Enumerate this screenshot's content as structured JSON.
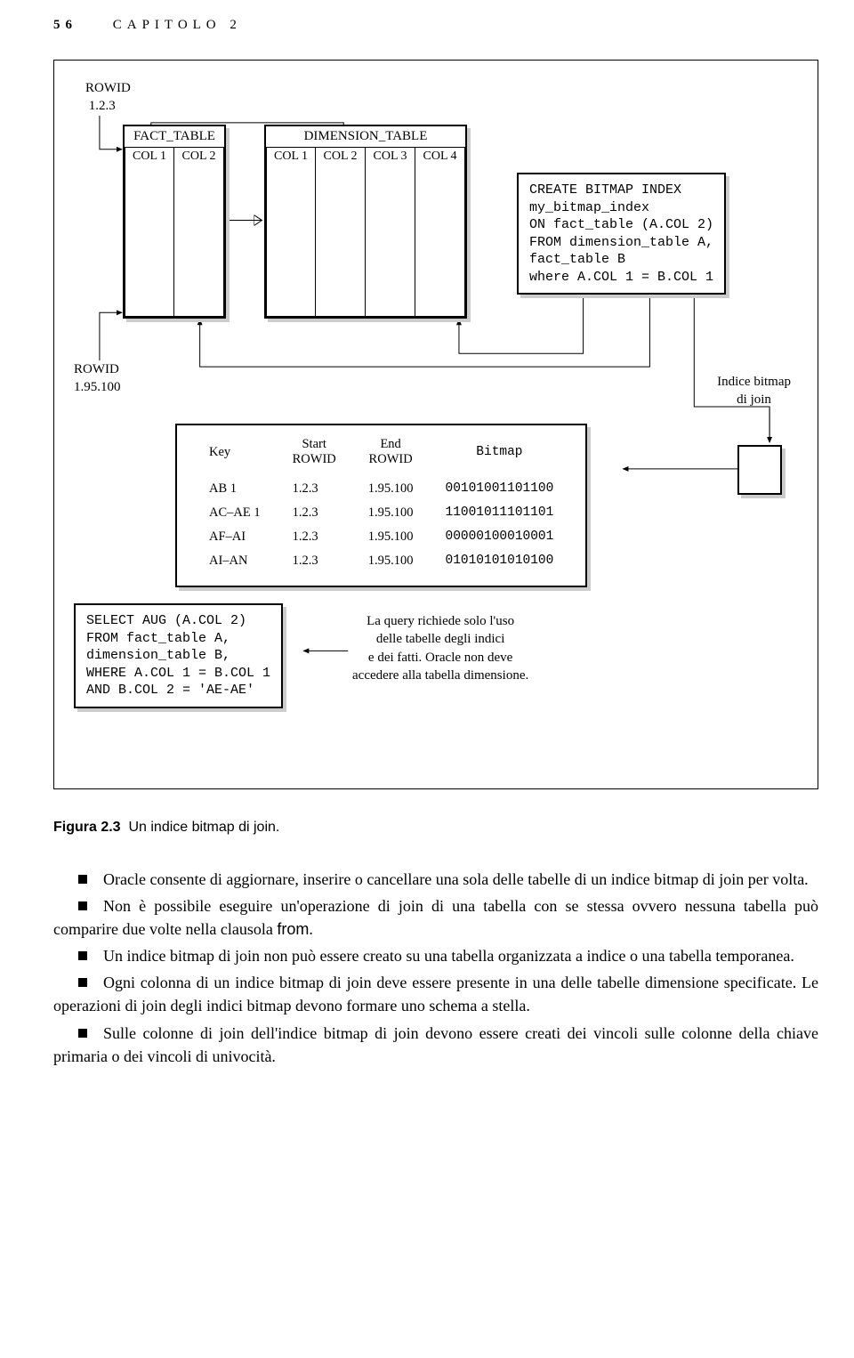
{
  "header": {
    "page_number": "56",
    "chapter": "CAPITOLO 2"
  },
  "diagram": {
    "rowid1": {
      "label": "ROWID",
      "value": "1.2.3"
    },
    "rowid2": {
      "label": "ROWID",
      "value": "1.95.100"
    },
    "indice_label_1": "Indice bitmap",
    "indice_label_2": "di join",
    "fact_table": {
      "title": "FACT_TABLE",
      "cols": [
        "COL 1",
        "COL 2"
      ]
    },
    "dim_table": {
      "title": "DIMENSION_TABLE",
      "cols": [
        "COL 1",
        "COL 2",
        "COL 3",
        "COL 4"
      ]
    },
    "create_sql": "CREATE BITMAP INDEX\nmy_bitmap_index\nON fact_table (A.COL 2)\nFROM dimension_table A,\nfact_table B\nwhere A.COL 1 = B.COL 1",
    "select_sql": "SELECT AUG (A.COL 2)\nFROM fact_table A,\ndimension_table B,\nWHERE A.COL 1 = B.COL 1\nAND B.COL 2 = 'AE-AE'",
    "bitmap_table": {
      "headers": {
        "key": "Key",
        "start": "Start\nROWID",
        "end": "End\nROWID",
        "bitmap": "Bitmap"
      },
      "rows": [
        {
          "key": "AB 1",
          "start": "1.2.3",
          "end": "1.95.100",
          "bitmap": "00101001101100"
        },
        {
          "key": "AC–AE 1",
          "start": "1.2.3",
          "end": "1.95.100",
          "bitmap": "11001011101101"
        },
        {
          "key": "AF–AI",
          "start": "1.2.3",
          "end": "1.95.100",
          "bitmap": "00000100010001"
        },
        {
          "key": "AI–AN",
          "start": "1.2.3",
          "end": "1.95.100",
          "bitmap": "01010101010100"
        }
      ]
    },
    "annotation": {
      "l1": "La query richiede solo l'uso",
      "l2": "delle tabelle degli indici",
      "l3": "e dei fatti. Oracle non deve",
      "l4": "accedere alla tabella dimensione."
    }
  },
  "figure_caption": {
    "bold": "Figura 2.3",
    "text": "Un indice bitmap di join."
  },
  "bullets": [
    "Oracle consente di aggiornare, inserire o cancellare una sola delle tabelle di un indice bitmap di join per volta.",
    "Non è possibile eseguire un'operazione di join di una tabella con se stessa ovvero nessuna tabella può comparire due volte nella clausola from.",
    "Un indice bitmap di join non può essere creato su una tabella organizzata a indice o una tabella temporanea.",
    "Ogni colonna di un indice bitmap di join deve essere presente in una delle tabelle dimensione specificate. Le operazioni di join degli indici bitmap devono formare uno schema a stella.",
    "Sulle colonne di join dell'indice bitmap di join devono essere creati dei vincoli sulle colonne della chiave primaria o dei vincoli di univocità."
  ],
  "colors": {
    "text": "#000000",
    "background": "#ffffff",
    "box_shadow": "#cccccc"
  }
}
